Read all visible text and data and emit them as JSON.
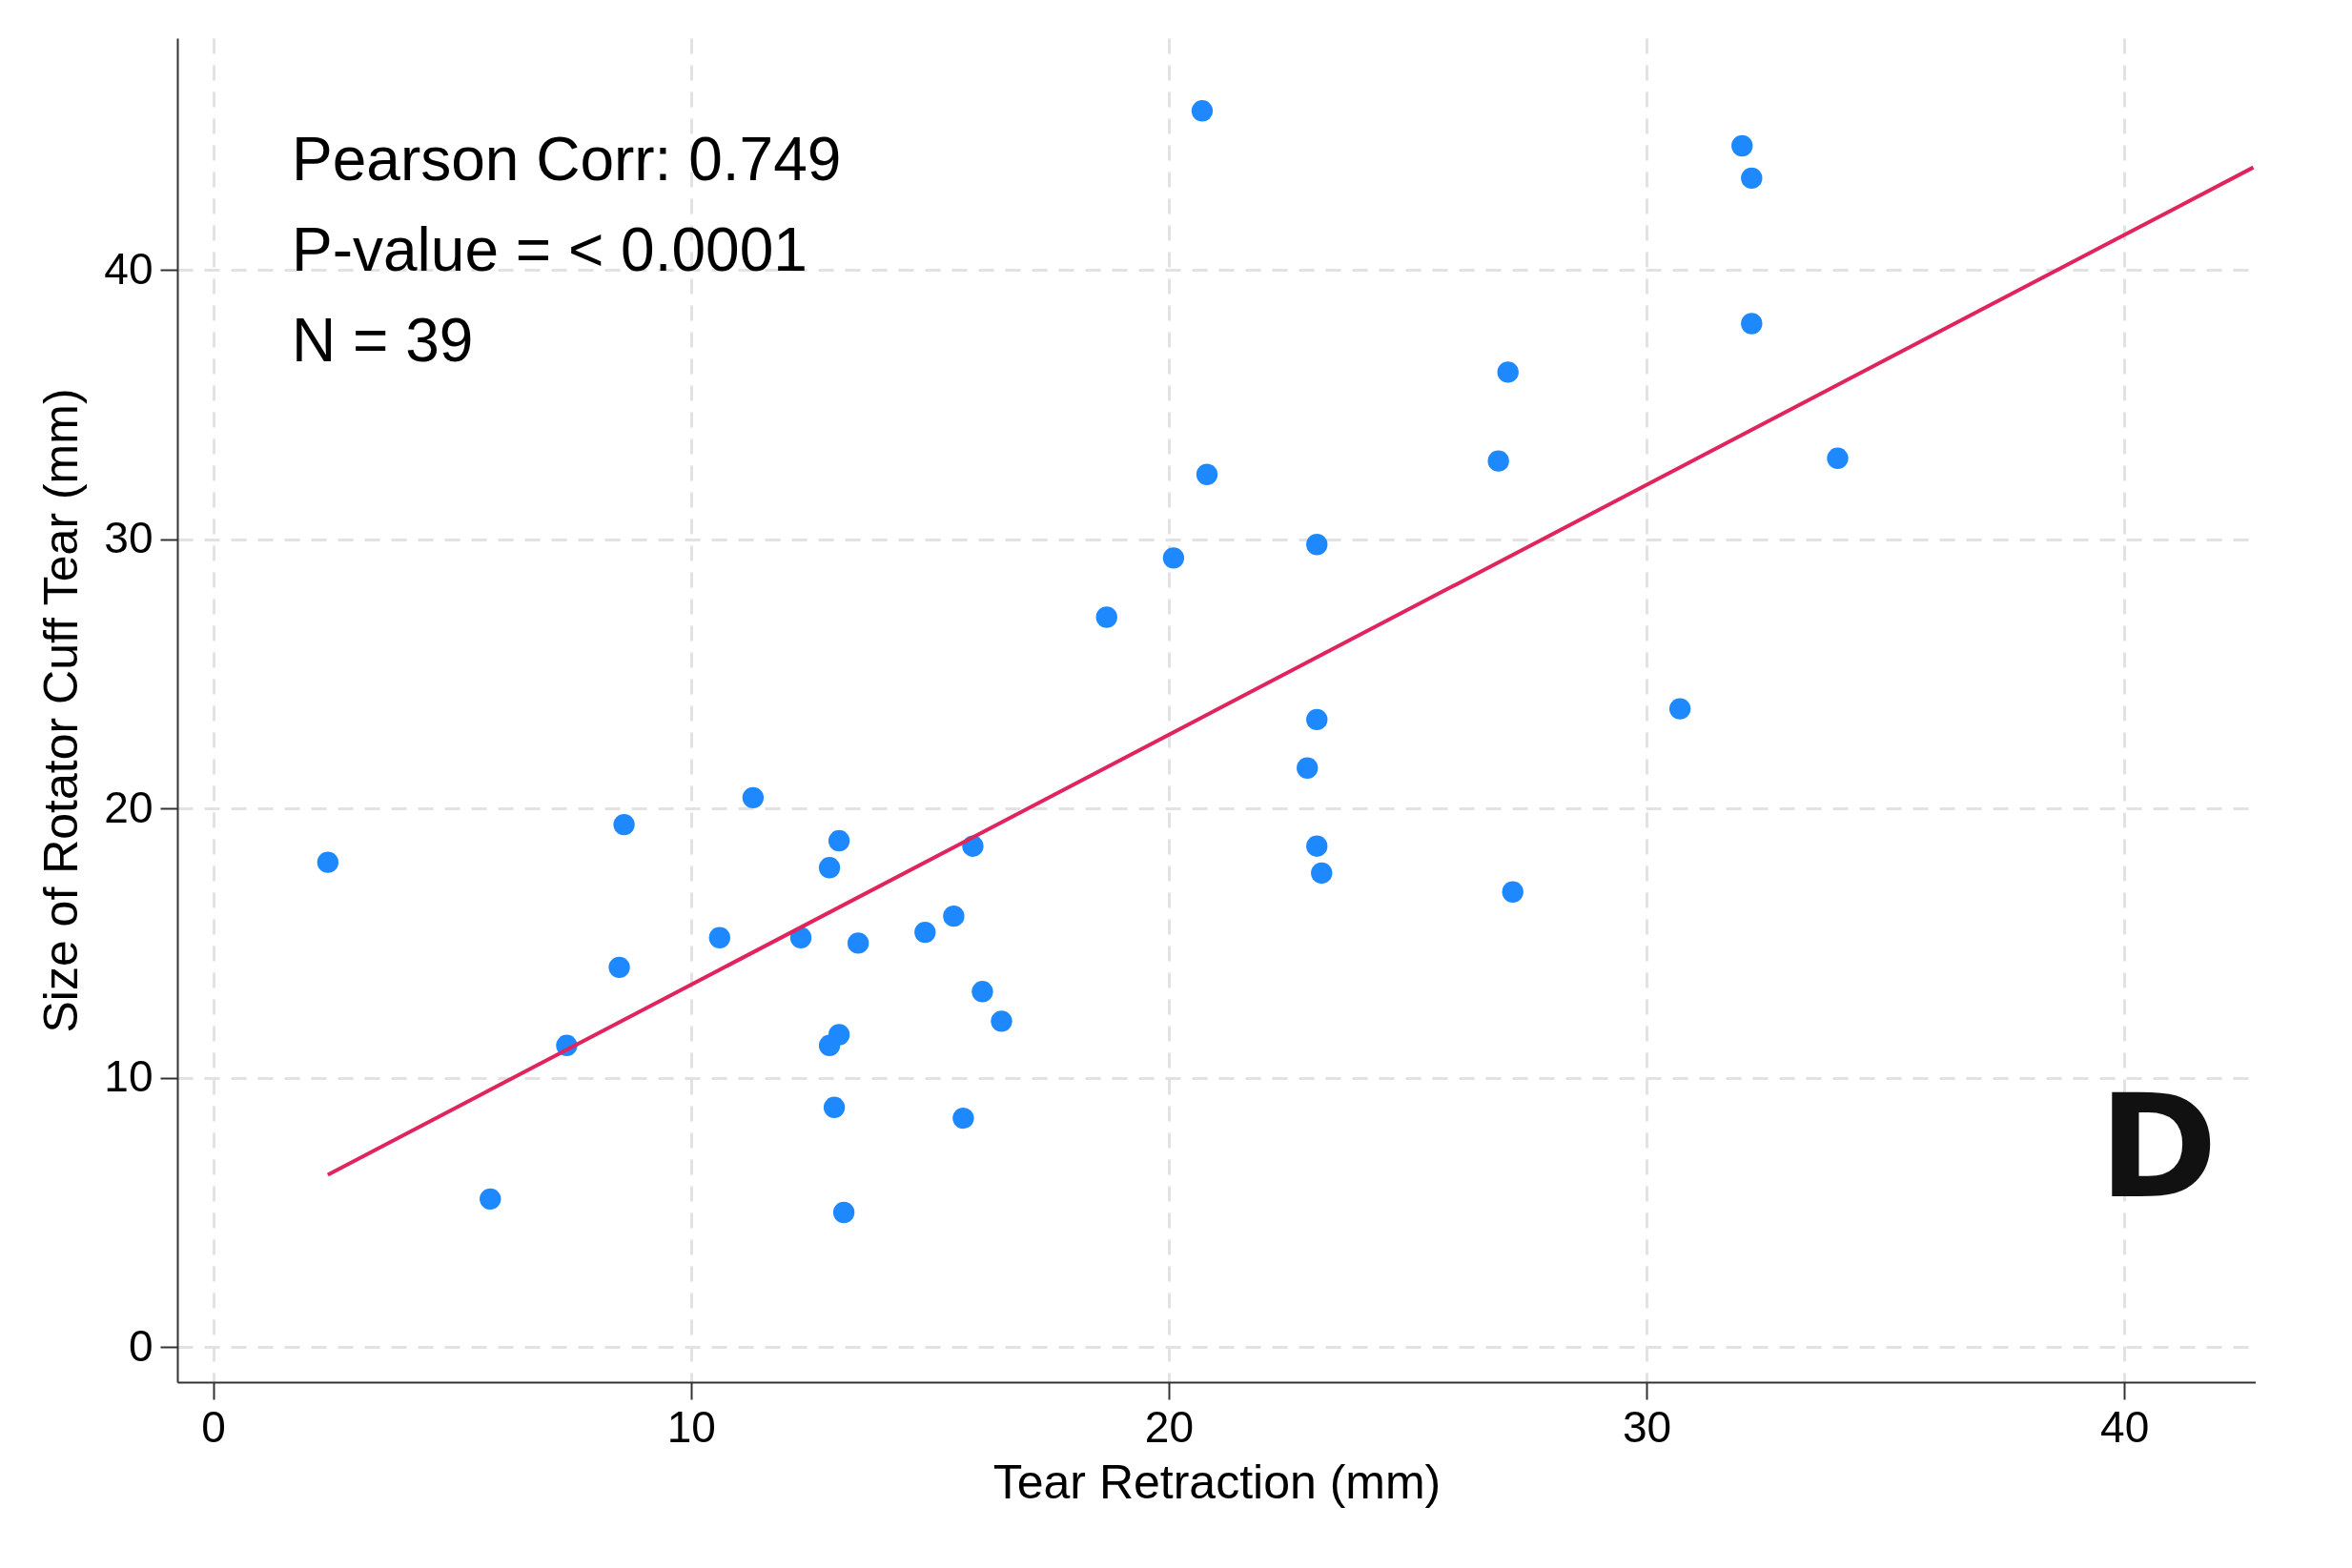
{
  "chart_data": {
    "type": "scatter",
    "xlabel": "Tear Retraction (mm)",
    "ylabel": "Size of Rotator Cuff Tear (mm)",
    "annotations": [
      "Pearson Corr: 0.749",
      "P-value = < 0.0001",
      "N = 39",
      "D"
    ],
    "xlim": [
      -0.75,
      42.75
    ],
    "ylim": [
      -1.3,
      48.6
    ],
    "xticks": [
      0,
      10,
      20,
      30,
      40
    ],
    "yticks": [
      0,
      10,
      20,
      30,
      40
    ],
    "grid": true,
    "marker": "circle",
    "series": [
      {
        "color": "#1e88ff",
        "x": [
          2.4,
          5.8,
          7.4,
          8.5,
          8.6,
          10.6,
          11.3,
          12.3,
          12.9,
          13.1,
          12.9,
          13.1,
          13.0,
          13.2,
          13.5,
          14.9,
          15.5,
          15.9,
          15.7,
          16.1,
          16.5,
          18.7,
          20.1,
          20.7,
          20.8,
          23.1,
          23.1,
          22.9,
          23.1,
          23.2,
          26.9,
          27.1,
          27.2,
          30.7,
          32.0,
          32.2,
          32.2,
          34.0
        ],
        "values": [
          18.0,
          5.5,
          11.2,
          14.1,
          19.4,
          15.2,
          20.4,
          15.2,
          17.8,
          18.8,
          11.2,
          11.6,
          8.9,
          5.0,
          15.0,
          15.4,
          16.0,
          18.6,
          8.5,
          13.2,
          12.1,
          27.1,
          29.3,
          45.9,
          32.4,
          29.8,
          23.3,
          21.5,
          18.6,
          17.6,
          32.9,
          36.2,
          16.9,
          23.7,
          44.6,
          43.4,
          38.0,
          33.0
        ]
      },
      {
        "type": "line",
        "marker": "none",
        "color": "#e0245e",
        "x": [
          2.4,
          42.7
        ],
        "values": [
          6.4,
          43.8
        ]
      }
    ]
  }
}
